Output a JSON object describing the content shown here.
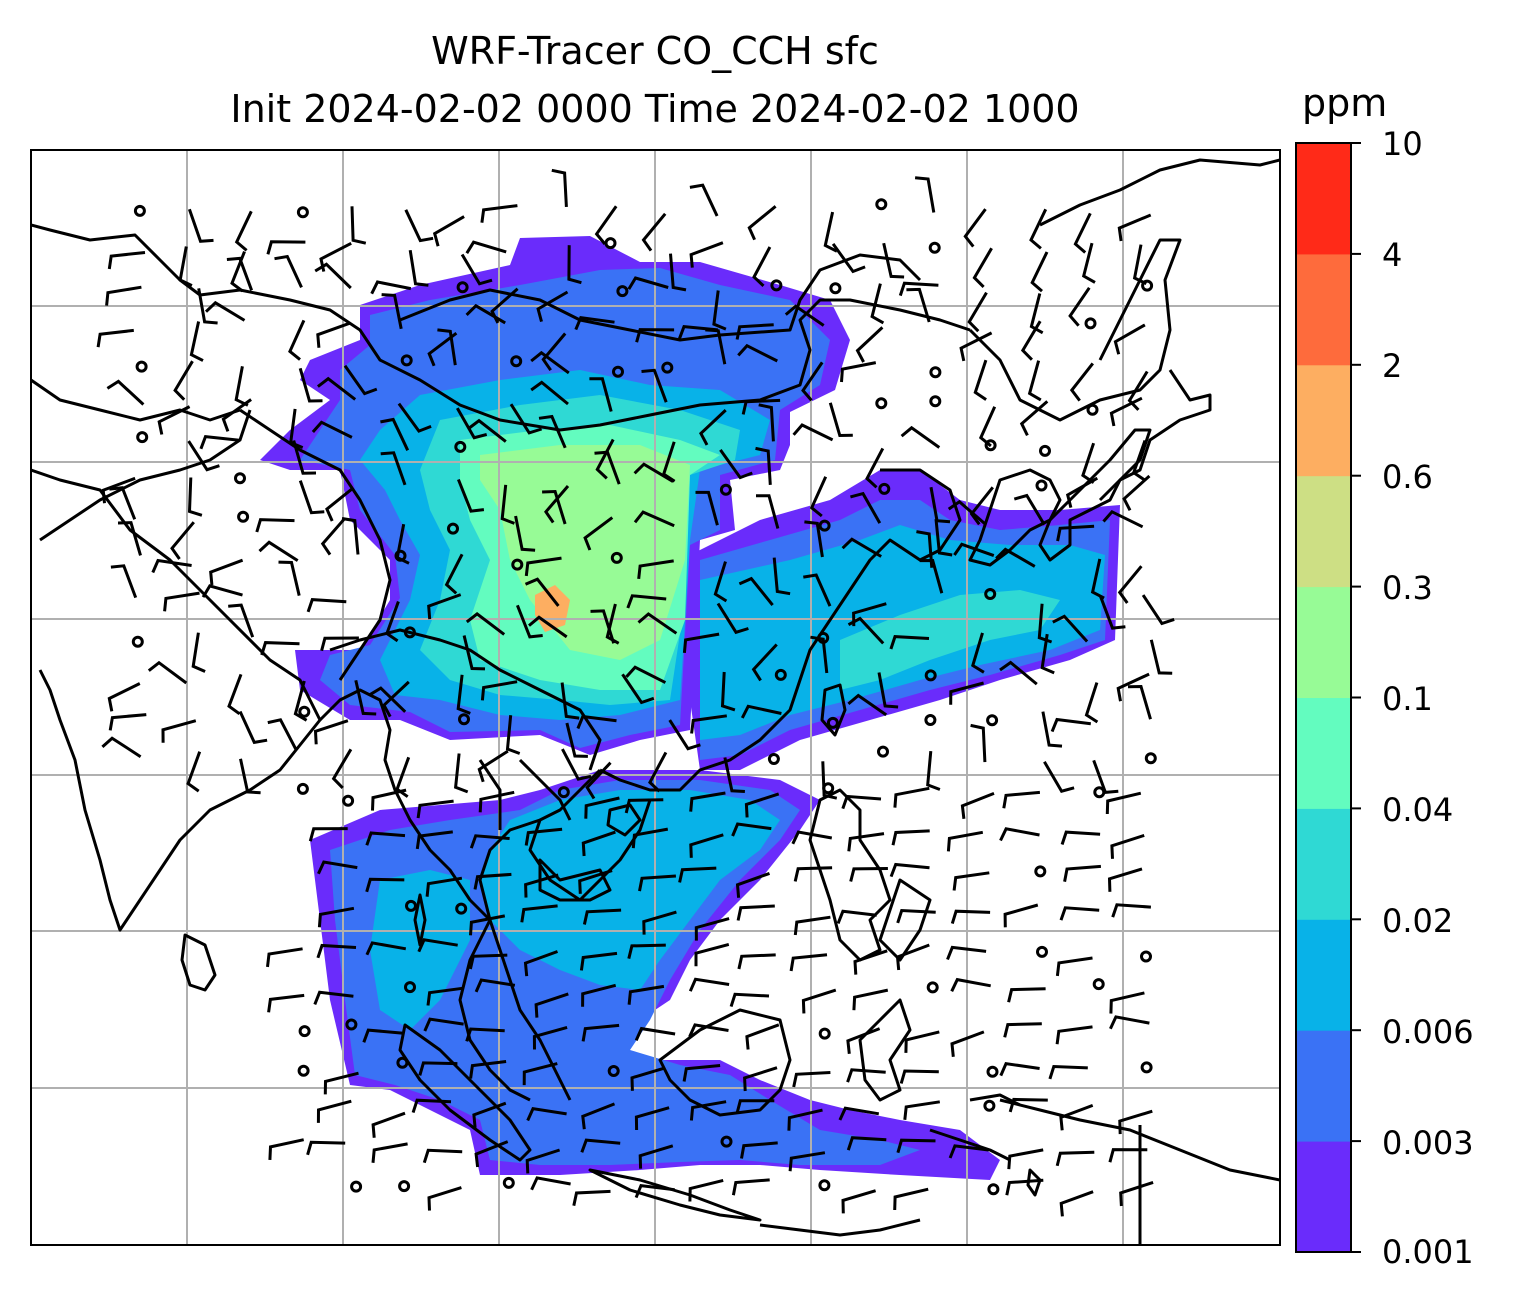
{
  "title": {
    "line1": "WRF-Tracer CO_CCH sfc",
    "line2": "Init 2024-02-02 0000 Time 2024-02-02 1000"
  },
  "colorbar": {
    "unit": "ppm",
    "levels": [
      "0.001",
      "0.003",
      "0.006",
      "0.02",
      "0.04",
      "0.1",
      "0.3",
      "0.6",
      "2",
      "4",
      "10"
    ],
    "colors": [
      "#6a2cfb",
      "#3a72f5",
      "#08b2e8",
      "#2fd9d4",
      "#63fcbf",
      "#97fb96",
      "#cddf84",
      "#fdae61",
      "#fe6b3c",
      "#ff2a18"
    ]
  },
  "map": {
    "grid_color": "#b0b0b0",
    "coastline_color": "#000000",
    "plume_colors": {
      "faint": "#6a2cfb",
      "low": "#3a72f5",
      "mid": "#08b2e8",
      "mid2": "#2fd9d4",
      "high": "#63fcbf",
      "higher": "#97fb96",
      "peak": "#fdae61"
    },
    "wind_barbs": "black"
  }
}
